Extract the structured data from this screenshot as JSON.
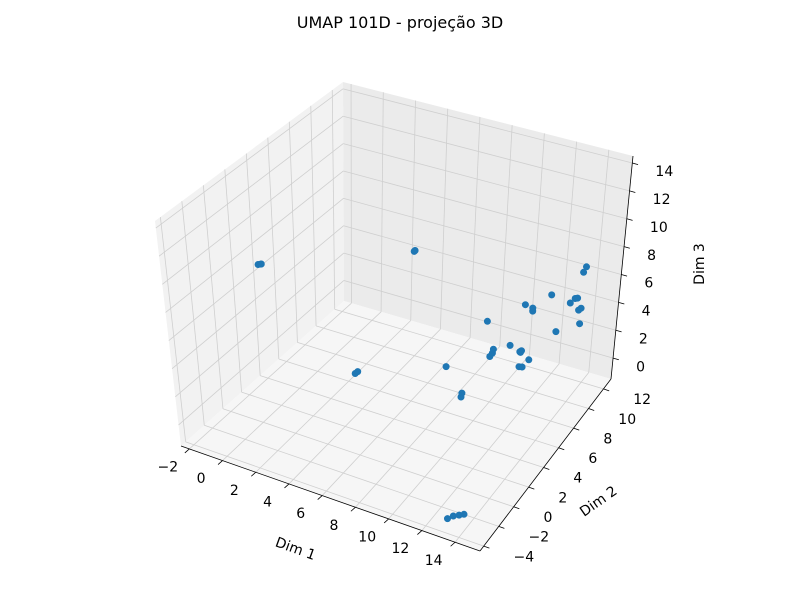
{
  "chart_data": {
    "type": "scatter",
    "projection": "3d",
    "title": "UMAP 101D - projeção 3D",
    "xlabel": "Dim 1",
    "ylabel": "Dim 2",
    "zlabel": "Dim 3",
    "xlim": [
      -2.5,
      15.5
    ],
    "ylim": [
      -4.5,
      13
    ],
    "zlim": [
      -1.5,
      14.5
    ],
    "xticks": [
      -2,
      0,
      2,
      4,
      6,
      8,
      10,
      12,
      14
    ],
    "yticks": [
      -4,
      -2,
      0,
      2,
      4,
      6,
      8,
      10,
      12
    ],
    "zticks": [
      0,
      2,
      4,
      6,
      8,
      10,
      12,
      14
    ],
    "xtick_labels": [
      "−2",
      "0",
      "2",
      "4",
      "6",
      "8",
      "10",
      "12",
      "14"
    ],
    "ytick_labels": [
      "−4",
      "−2",
      "0",
      "2",
      "4",
      "6",
      "8",
      "10",
      "12"
    ],
    "ztick_labels": [
      "0",
      "2",
      "4",
      "6",
      "8",
      "10",
      "12",
      "14"
    ],
    "grid": true,
    "marker_color": "#1f77b4",
    "points": [
      {
        "x": -2.2,
        "y": 4.0,
        "z": 6.6
      },
      {
        "x": -2.1,
        "y": 4.1,
        "z": 6.6
      },
      {
        "x": -2.0,
        "y": 4.0,
        "z": 6.7
      },
      {
        "x": 2.6,
        "y": 12.2,
        "z": 4.2
      },
      {
        "x": 2.6,
        "y": 12.3,
        "z": 4.2
      },
      {
        "x": 8.5,
        "y": 10.3,
        "z": 2.2
      },
      {
        "x": 8.2,
        "y": 6.0,
        "z": 1.6
      },
      {
        "x": 13.3,
        "y": -4.0,
        "z": -0.6
      },
      {
        "x": 13.6,
        "y": -3.9,
        "z": -0.4
      },
      {
        "x": 14.1,
        "y": -3.6,
        "z": -0.3
      },
      {
        "x": 13.9,
        "y": -3.8,
        "z": -0.3
      },
      {
        "x": 6.4,
        "y": -1.1,
        "z": 4.7
      },
      {
        "x": 6.5,
        "y": -1.0,
        "z": 4.8
      },
      {
        "x": 11.5,
        "y": 1.3,
        "z": 3.4
      },
      {
        "x": 11.5,
        "y": 1.4,
        "z": 3.6
      },
      {
        "x": 12.4,
        "y": 2.9,
        "z": 5.4
      },
      {
        "x": 12.5,
        "y": 3.0,
        "z": 5.6
      },
      {
        "x": 12.5,
        "y": 3.1,
        "z": 5.8
      },
      {
        "x": 12.6,
        "y": 5.0,
        "z": 5.0
      },
      {
        "x": 13.3,
        "y": 4.8,
        "z": 4.9
      },
      {
        "x": 13.4,
        "y": 4.8,
        "z": 5.0
      },
      {
        "x": 13.3,
        "y": 4.9,
        "z": 4.8
      },
      {
        "x": 13.8,
        "y": 3.7,
        "z": 4.7
      },
      {
        "x": 13.9,
        "y": 3.9,
        "z": 4.6
      },
      {
        "x": 14.1,
        "y": 4.3,
        "z": 4.9
      },
      {
        "x": 12.7,
        "y": 6.5,
        "z": 6.9
      },
      {
        "x": 12.5,
        "y": 7.9,
        "z": 5.6
      },
      {
        "x": 12.5,
        "y": 7.9,
        "z": 5.8
      },
      {
        "x": 13.0,
        "y": 9.2,
        "z": 6.1
      },
      {
        "x": 14.0,
        "y": 9.6,
        "z": 5.6
      },
      {
        "x": 14.4,
        "y": 10.2,
        "z": 7.5
      },
      {
        "x": 14.6,
        "y": 10.1,
        "z": 8.0
      },
      {
        "x": 14.6,
        "y": 8.9,
        "z": 6.5
      },
      {
        "x": 14.7,
        "y": 9.0,
        "z": 6.5
      },
      {
        "x": 14.1,
        "y": 7.7,
        "z": 4.8
      },
      {
        "x": 15.0,
        "y": 8.6,
        "z": 6.0
      },
      {
        "x": 15.1,
        "y": 8.7,
        "z": 6.1
      },
      {
        "x": 15.3,
        "y": 8.2,
        "z": 5.4
      }
    ]
  }
}
